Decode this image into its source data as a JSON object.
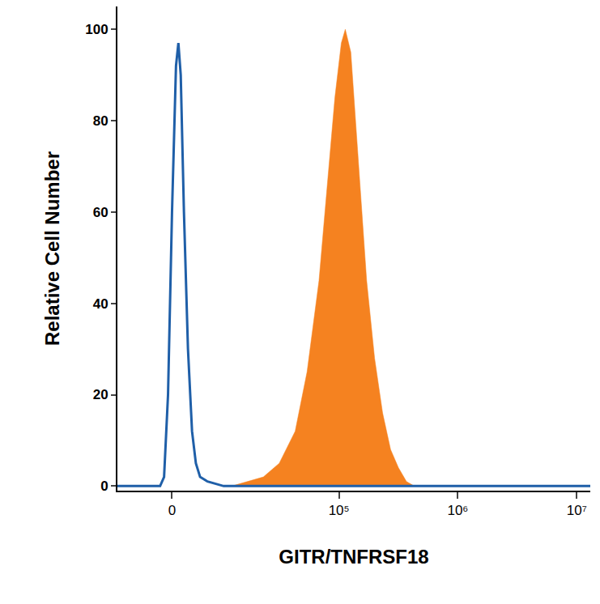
{
  "chart_data": {
    "type": "line",
    "xlabel": "GITR/TNFRSF18",
    "ylabel": "Relative Cell Number",
    "log": "x",
    "grid": false,
    "xlim": [
      -10000,
      13000000
    ],
    "xticks": [
      0,
      {
        "value": 100000,
        "label": "10⁵"
      },
      {
        "value": 1000000,
        "label": "10⁶"
      },
      {
        "value": 10000000,
        "label": "10⁷"
      }
    ],
    "ylim": [
      -1,
      105
    ],
    "yticks": [
      0,
      20,
      40,
      60,
      80,
      100
    ],
    "series": [
      {
        "type": "area",
        "color": "#f58220",
        "x": [
          11300,
          16100,
          22500,
          31000,
          42500,
          53700,
          67800,
          79100,
          92300,
          104600,
          113000,
          125800,
          146700,
          171000,
          199500,
          233000,
          272000,
          317000,
          370000,
          431000
        ],
        "values": [
          0,
          1,
          2,
          5,
          12,
          25,
          45,
          65,
          85,
          97,
          100,
          95,
          70,
          45,
          28,
          16,
          8,
          4,
          1,
          0
        ]
      },
      {
        "type": "line",
        "color": "#1f5fa8",
        "x": [
          -10000,
          -1840,
          -1220,
          -610,
          0,
          610,
          975,
          1340,
          1840,
          2480,
          3140,
          3780,
          4510,
          5860,
          9280,
          13000000
        ],
        "values": [
          0,
          0,
          2,
          20,
          60,
          92,
          97,
          90,
          60,
          30,
          12,
          5,
          2,
          1,
          0,
          0
        ]
      }
    ]
  }
}
